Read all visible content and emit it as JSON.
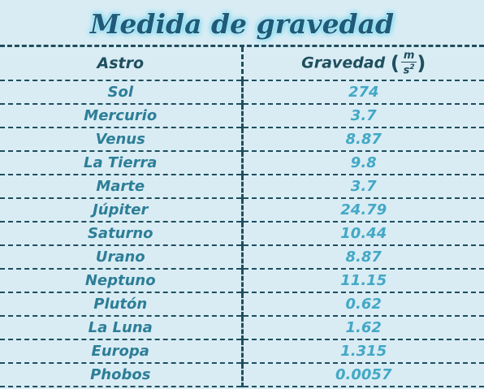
{
  "title": "Medida de gravedad",
  "headers": {
    "astro": "Astro",
    "gravedad": "Gravedad",
    "unit_open": "(",
    "unit_num": "m",
    "unit_den": "s",
    "unit_exp": "2",
    "unit_close": ")"
  },
  "rows": [
    {
      "astro": "Sol",
      "gravedad": "274"
    },
    {
      "astro": "Mercurio",
      "gravedad": "3.7"
    },
    {
      "astro": "Venus",
      "gravedad": "8.87"
    },
    {
      "astro": "La Tierra",
      "gravedad": "9.8"
    },
    {
      "astro": "Marte",
      "gravedad": "3.7"
    },
    {
      "astro": "Júpiter",
      "gravedad": "24.79"
    },
    {
      "astro": "Saturno",
      "gravedad": "10.44"
    },
    {
      "astro": "Urano",
      "gravedad": "8.87"
    },
    {
      "astro": "Neptuno",
      "gravedad": "11.15"
    },
    {
      "astro": "Plutón",
      "gravedad": "0.62"
    },
    {
      "astro": "La Luna",
      "gravedad": "1.62"
    },
    {
      "astro": "Europa",
      "gravedad": "1.315"
    },
    {
      "astro": "Phobos",
      "gravedad": "0.0057"
    }
  ]
}
